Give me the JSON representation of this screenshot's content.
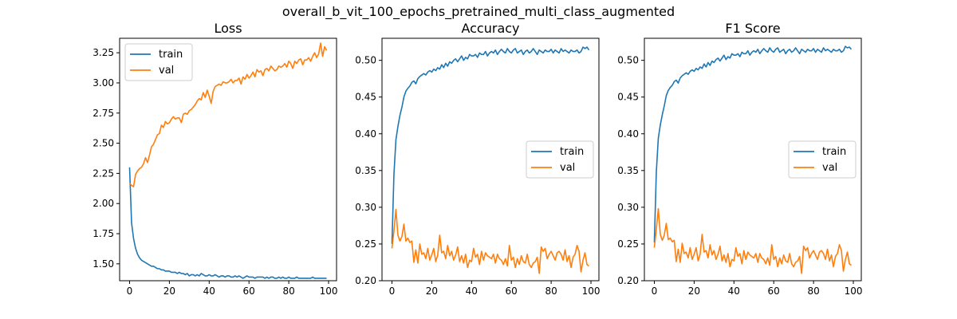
{
  "figure": {
    "suptitle": "overall_b_vit_100_epochs_pretrained_multi_class_augmented"
  },
  "chart_data": [
    {
      "type": "line",
      "title": "Loss",
      "xlabel": "",
      "ylabel": "",
      "xlim": [
        -5,
        104
      ],
      "ylim": [
        1.36,
        3.37
      ],
      "xticks": [
        0,
        20,
        40,
        60,
        80,
        100
      ],
      "yticks": [
        1.5,
        1.75,
        2.0,
        2.25,
        2.5,
        2.75,
        3.0,
        3.25
      ],
      "ytick_labels": [
        "1.50",
        "1.75",
        "2.00",
        "2.25",
        "2.50",
        "2.75",
        "3.00",
        "3.25"
      ],
      "grid": false,
      "legend": "upper-left",
      "series": [
        {
          "name": "train",
          "color": "#1f77b4",
          "values": [
            2.3,
            1.84,
            1.71,
            1.63,
            1.58,
            1.55,
            1.53,
            1.52,
            1.51,
            1.5,
            1.49,
            1.48,
            1.48,
            1.47,
            1.46,
            1.46,
            1.45,
            1.45,
            1.44,
            1.44,
            1.44,
            1.43,
            1.43,
            1.43,
            1.42,
            1.43,
            1.42,
            1.42,
            1.41,
            1.42,
            1.4,
            1.41,
            1.41,
            1.4,
            1.41,
            1.4,
            1.42,
            1.41,
            1.4,
            1.4,
            1.41,
            1.4,
            1.4,
            1.41,
            1.4,
            1.39,
            1.4,
            1.4,
            1.39,
            1.4,
            1.4,
            1.39,
            1.39,
            1.4,
            1.39,
            1.4,
            1.39,
            1.38,
            1.39,
            1.4,
            1.39,
            1.39,
            1.39,
            1.38,
            1.39,
            1.39,
            1.39,
            1.39,
            1.38,
            1.39,
            1.38,
            1.39,
            1.39,
            1.38,
            1.38,
            1.39,
            1.38,
            1.39,
            1.38,
            1.38,
            1.39,
            1.38,
            1.38,
            1.38,
            1.39,
            1.38,
            1.38,
            1.38,
            1.38,
            1.38,
            1.38,
            1.38,
            1.39,
            1.38,
            1.38,
            1.38,
            1.38,
            1.38,
            1.38,
            1.38
          ]
        },
        {
          "name": "val",
          "color": "#ff7f0e",
          "values": [
            2.17,
            2.15,
            2.14,
            2.24,
            2.27,
            2.29,
            2.3,
            2.33,
            2.38,
            2.34,
            2.4,
            2.47,
            2.49,
            2.53,
            2.57,
            2.58,
            2.65,
            2.63,
            2.68,
            2.66,
            2.67,
            2.7,
            2.72,
            2.7,
            2.71,
            2.71,
            2.67,
            2.74,
            2.75,
            2.74,
            2.77,
            2.78,
            2.8,
            2.82,
            2.85,
            2.87,
            2.86,
            2.92,
            2.88,
            2.94,
            2.89,
            2.83,
            2.93,
            2.97,
            2.98,
            2.99,
            2.98,
            3.01,
            3.0,
            3.0,
            3.01,
            3.03,
            3.0,
            3.02,
            3.02,
            3.04,
            2.99,
            3.05,
            3.03,
            3.07,
            3.04,
            3.06,
            3.09,
            3.05,
            3.11,
            3.09,
            3.1,
            3.06,
            3.11,
            3.12,
            3.1,
            3.14,
            3.12,
            3.1,
            3.11,
            3.14,
            3.13,
            3.14,
            3.16,
            3.13,
            3.18,
            3.16,
            3.12,
            3.18,
            3.16,
            3.19,
            3.2,
            3.15,
            3.19,
            3.19,
            3.21,
            3.18,
            3.22,
            3.25,
            3.21,
            3.24,
            3.33,
            3.22,
            3.3,
            3.27
          ]
        }
      ]
    },
    {
      "type": "line",
      "title": "Accuracy",
      "xlabel": "",
      "ylabel": "",
      "xlim": [
        -5,
        104
      ],
      "ylim": [
        0.2,
        0.53
      ],
      "xticks": [
        0,
        20,
        40,
        60,
        80,
        100
      ],
      "yticks": [
        0.2,
        0.25,
        0.3,
        0.35,
        0.4,
        0.45,
        0.5
      ],
      "ytick_labels": [
        "0.20",
        "0.25",
        "0.30",
        "0.35",
        "0.40",
        "0.45",
        "0.50"
      ],
      "grid": false,
      "legend": "center-right",
      "series": [
        {
          "name": "train",
          "color": "#1f77b4",
          "values": [
            0.25,
            0.345,
            0.392,
            0.41,
            0.425,
            0.436,
            0.45,
            0.458,
            0.462,
            0.465,
            0.47,
            0.472,
            0.468,
            0.475,
            0.478,
            0.48,
            0.482,
            0.48,
            0.484,
            0.486,
            0.484,
            0.488,
            0.486,
            0.49,
            0.488,
            0.494,
            0.49,
            0.496,
            0.492,
            0.498,
            0.496,
            0.5,
            0.502,
            0.498,
            0.502,
            0.506,
            0.5,
            0.504,
            0.502,
            0.508,
            0.506,
            0.506,
            0.508,
            0.504,
            0.51,
            0.508,
            0.508,
            0.512,
            0.506,
            0.51,
            0.512,
            0.51,
            0.514,
            0.508,
            0.512,
            0.515,
            0.512,
            0.51,
            0.516,
            0.512,
            0.51,
            0.514,
            0.516,
            0.51,
            0.512,
            0.514,
            0.508,
            0.512,
            0.514,
            0.51,
            0.512,
            0.516,
            0.512,
            0.508,
            0.514,
            0.512,
            0.51,
            0.514,
            0.512,
            0.512,
            0.515,
            0.51,
            0.514,
            0.512,
            0.51,
            0.516,
            0.512,
            0.514,
            0.512,
            0.51,
            0.514,
            0.512,
            0.512,
            0.514,
            0.51,
            0.512,
            0.518,
            0.516,
            0.518,
            0.514
          ]
        },
        {
          "name": "val",
          "color": "#ff7f0e",
          "values": [
            0.244,
            0.268,
            0.297,
            0.262,
            0.254,
            0.26,
            0.277,
            0.254,
            0.258,
            0.252,
            0.254,
            0.225,
            0.242,
            0.224,
            0.25,
            0.236,
            0.238,
            0.23,
            0.244,
            0.228,
            0.235,
            0.244,
            0.226,
            0.235,
            0.262,
            0.238,
            0.24,
            0.23,
            0.248,
            0.234,
            0.24,
            0.228,
            0.235,
            0.246,
            0.226,
            0.234,
            0.224,
            0.236,
            0.218,
            0.228,
            0.226,
            0.244,
            0.232,
            0.236,
            0.222,
            0.24,
            0.228,
            0.238,
            0.234,
            0.232,
            0.23,
            0.236,
            0.224,
            0.236,
            0.23,
            0.228,
            0.222,
            0.23,
            0.22,
            0.248,
            0.228,
            0.232,
            0.218,
            0.23,
            0.222,
            0.234,
            0.226,
            0.224,
            0.236,
            0.222,
            0.218,
            0.224,
            0.226,
            0.232,
            0.21,
            0.246,
            0.24,
            0.244,
            0.23,
            0.236,
            0.24,
            0.234,
            0.228,
            0.238,
            0.24,
            0.236,
            0.228,
            0.242,
            0.226,
            0.234,
            0.218,
            0.232,
            0.236,
            0.248,
            0.24,
            0.212,
            0.228,
            0.238,
            0.222,
            0.22
          ]
        }
      ]
    },
    {
      "type": "line",
      "title": "F1 Score",
      "xlabel": "",
      "ylabel": "",
      "xlim": [
        -5,
        104
      ],
      "ylim": [
        0.2,
        0.53
      ],
      "xticks": [
        0,
        20,
        40,
        60,
        80,
        100
      ],
      "yticks": [
        0.2,
        0.25,
        0.3,
        0.35,
        0.4,
        0.45,
        0.5
      ],
      "ytick_labels": [
        "0.20",
        "0.25",
        "0.30",
        "0.35",
        "0.40",
        "0.45",
        "0.50"
      ],
      "grid": false,
      "legend": "center-right",
      "series": [
        {
          "name": "train",
          "color": "#1f77b4",
          "values": [
            0.252,
            0.348,
            0.394,
            0.412,
            0.426,
            0.438,
            0.452,
            0.459,
            0.463,
            0.466,
            0.471,
            0.473,
            0.469,
            0.476,
            0.479,
            0.481,
            0.483,
            0.481,
            0.485,
            0.487,
            0.485,
            0.489,
            0.487,
            0.491,
            0.489,
            0.495,
            0.491,
            0.497,
            0.493,
            0.499,
            0.497,
            0.501,
            0.503,
            0.499,
            0.503,
            0.507,
            0.501,
            0.505,
            0.503,
            0.509,
            0.507,
            0.507,
            0.509,
            0.505,
            0.511,
            0.509,
            0.509,
            0.513,
            0.507,
            0.511,
            0.513,
            0.511,
            0.515,
            0.509,
            0.513,
            0.516,
            0.513,
            0.511,
            0.517,
            0.513,
            0.511,
            0.515,
            0.517,
            0.511,
            0.513,
            0.515,
            0.509,
            0.513,
            0.515,
            0.511,
            0.513,
            0.517,
            0.513,
            0.509,
            0.515,
            0.513,
            0.511,
            0.515,
            0.513,
            0.513,
            0.516,
            0.511,
            0.515,
            0.513,
            0.511,
            0.517,
            0.513,
            0.515,
            0.513,
            0.511,
            0.515,
            0.513,
            0.513,
            0.515,
            0.511,
            0.513,
            0.519,
            0.517,
            0.518,
            0.515
          ]
        },
        {
          "name": "val",
          "color": "#ff7f0e",
          "values": [
            0.245,
            0.27,
            0.298,
            0.263,
            0.255,
            0.262,
            0.278,
            0.256,
            0.258,
            0.253,
            0.255,
            0.226,
            0.243,
            0.225,
            0.251,
            0.237,
            0.239,
            0.231,
            0.245,
            0.229,
            0.236,
            0.245,
            0.227,
            0.236,
            0.263,
            0.239,
            0.241,
            0.231,
            0.249,
            0.235,
            0.241,
            0.229,
            0.236,
            0.247,
            0.227,
            0.235,
            0.225,
            0.237,
            0.219,
            0.229,
            0.227,
            0.245,
            0.233,
            0.237,
            0.223,
            0.241,
            0.229,
            0.239,
            0.235,
            0.233,
            0.231,
            0.237,
            0.225,
            0.237,
            0.231,
            0.229,
            0.223,
            0.231,
            0.221,
            0.249,
            0.229,
            0.233,
            0.219,
            0.231,
            0.223,
            0.235,
            0.227,
            0.225,
            0.237,
            0.223,
            0.219,
            0.225,
            0.227,
            0.233,
            0.21,
            0.247,
            0.241,
            0.245,
            0.231,
            0.237,
            0.241,
            0.235,
            0.229,
            0.239,
            0.241,
            0.237,
            0.229,
            0.243,
            0.227,
            0.235,
            0.219,
            0.233,
            0.237,
            0.249,
            0.241,
            0.213,
            0.229,
            0.239,
            0.223,
            0.221
          ]
        }
      ]
    }
  ]
}
